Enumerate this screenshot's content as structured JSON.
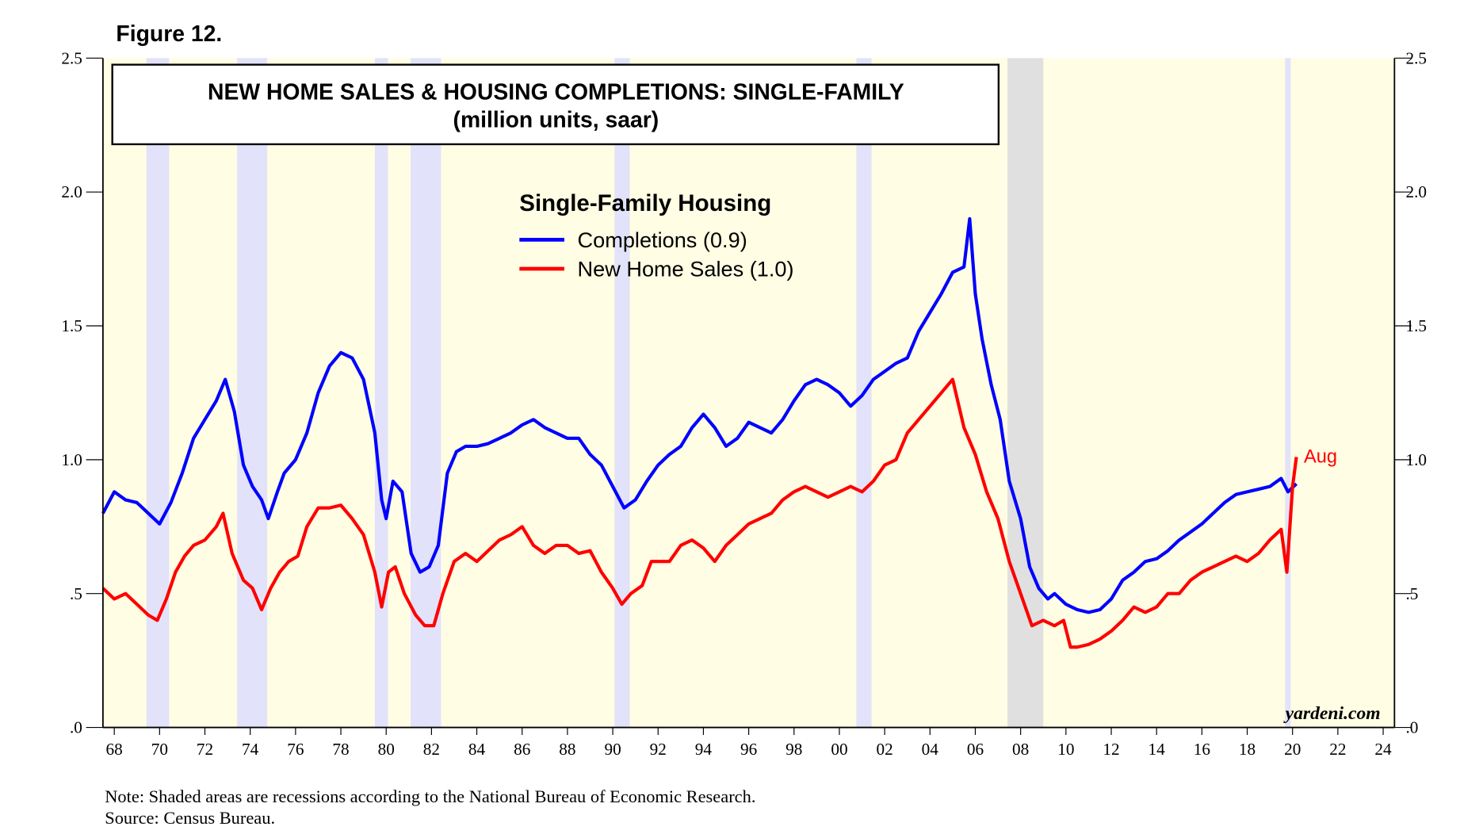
{
  "chart_data": {
    "type": "line",
    "figure_label": "Figure 12.",
    "title": "NEW HOME SALES & HOUSING COMPLETIONS: SINGLE-FAMILY",
    "subtitle": "(million units, saar)",
    "legend_title": "Single-Family Housing",
    "annotation": "Aug",
    "annotation_color": "#ff0000",
    "watermark": "yardeni.com",
    "note": "Note: Shaded areas are recessions according to the National Bureau of Economic Research.",
    "source": "Source: Census Bureau.",
    "background": "#fffde3",
    "recessions": [
      {
        "start": 1969.92,
        "end": 1970.92,
        "color": "#e2e2fa"
      },
      {
        "start": 1973.92,
        "end": 1975.25,
        "color": "#e2e2fa"
      },
      {
        "start": 1980.0,
        "end": 1980.58,
        "color": "#e2e2fa"
      },
      {
        "start": 1981.58,
        "end": 1982.92,
        "color": "#e2e2fa"
      },
      {
        "start": 1990.58,
        "end": 1991.25,
        "color": "#e2e2fa"
      },
      {
        "start": 2001.25,
        "end": 2001.92,
        "color": "#e2e2fa"
      },
      {
        "start": 2007.92,
        "end": 2009.5,
        "color": "#e0e0e0"
      },
      {
        "start": 2020.17,
        "end": 2020.42,
        "color": "#e2e2fa"
      }
    ],
    "xlim": [
      1968,
      2025
    ],
    "xticks": [
      {
        "value": 1968.5,
        "label": "68"
      },
      {
        "value": 1970.5,
        "label": "70"
      },
      {
        "value": 1972.5,
        "label": "72"
      },
      {
        "value": 1974.5,
        "label": "74"
      },
      {
        "value": 1976.5,
        "label": "76"
      },
      {
        "value": 1978.5,
        "label": "78"
      },
      {
        "value": 1980.5,
        "label": "80"
      },
      {
        "value": 1982.5,
        "label": "82"
      },
      {
        "value": 1984.5,
        "label": "84"
      },
      {
        "value": 1986.5,
        "label": "86"
      },
      {
        "value": 1988.5,
        "label": "88"
      },
      {
        "value": 1990.5,
        "label": "90"
      },
      {
        "value": 1992.5,
        "label": "92"
      },
      {
        "value": 1994.5,
        "label": "94"
      },
      {
        "value": 1996.5,
        "label": "96"
      },
      {
        "value": 1998.5,
        "label": "98"
      },
      {
        "value": 2000.5,
        "label": "00"
      },
      {
        "value": 2002.5,
        "label": "02"
      },
      {
        "value": 2004.5,
        "label": "04"
      },
      {
        "value": 2006.5,
        "label": "06"
      },
      {
        "value": 2008.5,
        "label": "08"
      },
      {
        "value": 2010.5,
        "label": "10"
      },
      {
        "value": 2012.5,
        "label": "12"
      },
      {
        "value": 2014.5,
        "label": "14"
      },
      {
        "value": 2016.5,
        "label": "16"
      },
      {
        "value": 2018.5,
        "label": "18"
      },
      {
        "value": 2020.5,
        "label": "20"
      },
      {
        "value": 2022.5,
        "label": "22"
      },
      {
        "value": 2024.5,
        "label": "24"
      }
    ],
    "ylim": [
      0,
      2.5
    ],
    "yticks": [
      {
        "value": 0,
        "label": ".0"
      },
      {
        "value": 0.5,
        "label": ".5"
      },
      {
        "value": 1,
        "label": "1.0"
      },
      1.5,
      {
        "value": 2,
        "label": "2.0"
      },
      2.5
    ],
    "y2lim": [
      0,
      2.5
    ],
    "y2ticks": [
      {
        "value": 0,
        "label": ".0"
      },
      {
        "value": 0.5,
        "label": ".5"
      },
      {
        "value": 1,
        "label": "1.0"
      },
      1.5,
      {
        "value": 2,
        "label": "2.0"
      },
      2.5
    ],
    "series": [
      {
        "name": "Completions (0.9)",
        "color": "#0000ff",
        "x": [
          1968.0,
          1968.5,
          1969.0,
          1969.5,
          1970.0,
          1970.5,
          1971.0,
          1971.5,
          1972.0,
          1972.5,
          1973.0,
          1973.4,
          1973.8,
          1974.2,
          1974.6,
          1975.0,
          1975.3,
          1975.7,
          1976.0,
          1976.5,
          1977.0,
          1977.5,
          1978.0,
          1978.5,
          1979.0,
          1979.5,
          1980.0,
          1980.3,
          1980.5,
          1980.8,
          1981.2,
          1981.6,
          1982.0,
          1982.4,
          1982.8,
          1983.2,
          1983.6,
          1984.0,
          1984.5,
          1985.0,
          1985.5,
          1986.0,
          1986.5,
          1987.0,
          1987.5,
          1988.0,
          1988.5,
          1989.0,
          1989.5,
          1990.0,
          1990.5,
          1991.0,
          1991.5,
          1992.0,
          1992.5,
          1993.0,
          1993.5,
          1994.0,
          1994.5,
          1995.0,
          1995.5,
          1996.0,
          1996.5,
          1997.0,
          1997.5,
          1998.0,
          1998.5,
          1999.0,
          1999.5,
          2000.0,
          2000.5,
          2001.0,
          2001.5,
          2002.0,
          2002.5,
          2003.0,
          2003.5,
          2004.0,
          2004.5,
          2005.0,
          2005.5,
          2006.0,
          2006.25,
          2006.5,
          2006.8,
          2007.2,
          2007.6,
          2008.0,
          2008.5,
          2008.9,
          2009.3,
          2009.7,
          2010.0,
          2010.5,
          2011.0,
          2011.5,
          2012.0,
          2012.5,
          2013.0,
          2013.5,
          2014.0,
          2014.5,
          2015.0,
          2015.5,
          2016.0,
          2016.5,
          2017.0,
          2017.5,
          2018.0,
          2018.5,
          2019.0,
          2019.5,
          2020.0,
          2020.3,
          2020.67
        ],
        "values": [
          0.8,
          0.88,
          0.85,
          0.84,
          0.8,
          0.76,
          0.84,
          0.95,
          1.08,
          1.15,
          1.22,
          1.3,
          1.18,
          0.98,
          0.9,
          0.85,
          0.78,
          0.88,
          0.95,
          1.0,
          1.1,
          1.25,
          1.35,
          1.4,
          1.38,
          1.3,
          1.1,
          0.85,
          0.78,
          0.92,
          0.88,
          0.65,
          0.58,
          0.6,
          0.68,
          0.95,
          1.03,
          1.05,
          1.05,
          1.06,
          1.08,
          1.1,
          1.13,
          1.15,
          1.12,
          1.1,
          1.08,
          1.08,
          1.02,
          0.98,
          0.9,
          0.82,
          0.85,
          0.92,
          0.98,
          1.02,
          1.05,
          1.12,
          1.17,
          1.12,
          1.05,
          1.08,
          1.14,
          1.12,
          1.1,
          1.15,
          1.22,
          1.28,
          1.3,
          1.28,
          1.25,
          1.2,
          1.24,
          1.3,
          1.33,
          1.36,
          1.38,
          1.48,
          1.55,
          1.62,
          1.7,
          1.72,
          1.9,
          1.62,
          1.45,
          1.28,
          1.15,
          0.92,
          0.78,
          0.6,
          0.52,
          0.48,
          0.5,
          0.46,
          0.44,
          0.43,
          0.44,
          0.48,
          0.55,
          0.58,
          0.62,
          0.63,
          0.66,
          0.7,
          0.73,
          0.76,
          0.8,
          0.84,
          0.87,
          0.88,
          0.89,
          0.9,
          0.93,
          0.88,
          0.91
        ]
      },
      {
        "name": "New Home Sales (1.0)",
        "color": "#ff0000",
        "x": [
          1968.0,
          1968.5,
          1969.0,
          1969.5,
          1970.0,
          1970.4,
          1970.8,
          1971.2,
          1971.6,
          1972.0,
          1972.5,
          1973.0,
          1973.3,
          1973.7,
          1974.2,
          1974.6,
          1975.0,
          1975.4,
          1975.8,
          1976.2,
          1976.6,
          1977.0,
          1977.5,
          1978.0,
          1978.5,
          1979.0,
          1979.5,
          1980.0,
          1980.3,
          1980.6,
          1980.9,
          1981.3,
          1981.8,
          1982.2,
          1982.6,
          1983.0,
          1983.5,
          1984.0,
          1984.5,
          1985.0,
          1985.5,
          1986.0,
          1986.5,
          1987.0,
          1987.5,
          1988.0,
          1988.5,
          1989.0,
          1989.5,
          1990.0,
          1990.5,
          1990.9,
          1991.3,
          1991.8,
          1992.2,
          1992.6,
          1993.0,
          1993.5,
          1994.0,
          1994.5,
          1995.0,
          1995.5,
          1996.0,
          1996.5,
          1997.0,
          1997.5,
          1998.0,
          1998.5,
          1999.0,
          1999.5,
          2000.0,
          2000.5,
          2001.0,
          2001.5,
          2002.0,
          2002.5,
          2003.0,
          2003.5,
          2004.0,
          2004.5,
          2005.0,
          2005.5,
          2006.0,
          2006.5,
          2007.0,
          2007.5,
          2008.0,
          2008.5,
          2009.0,
          2009.5,
          2010.0,
          2010.4,
          2010.7,
          2011.0,
          2011.5,
          2012.0,
          2012.5,
          2013.0,
          2013.5,
          2014.0,
          2014.5,
          2015.0,
          2015.5,
          2016.0,
          2016.5,
          2017.0,
          2017.5,
          2018.0,
          2018.5,
          2019.0,
          2019.5,
          2020.0,
          2020.25,
          2020.5,
          2020.67
        ],
        "values": [
          0.52,
          0.48,
          0.5,
          0.46,
          0.42,
          0.4,
          0.48,
          0.58,
          0.64,
          0.68,
          0.7,
          0.75,
          0.8,
          0.65,
          0.55,
          0.52,
          0.44,
          0.52,
          0.58,
          0.62,
          0.64,
          0.75,
          0.82,
          0.82,
          0.83,
          0.78,
          0.72,
          0.58,
          0.45,
          0.58,
          0.6,
          0.5,
          0.42,
          0.38,
          0.38,
          0.5,
          0.62,
          0.65,
          0.62,
          0.66,
          0.7,
          0.72,
          0.75,
          0.68,
          0.65,
          0.68,
          0.68,
          0.65,
          0.66,
          0.58,
          0.52,
          0.46,
          0.5,
          0.53,
          0.62,
          0.62,
          0.62,
          0.68,
          0.7,
          0.67,
          0.62,
          0.68,
          0.72,
          0.76,
          0.78,
          0.8,
          0.85,
          0.88,
          0.9,
          0.88,
          0.86,
          0.88,
          0.9,
          0.88,
          0.92,
          0.98,
          1.0,
          1.1,
          1.15,
          1.2,
          1.25,
          1.3,
          1.12,
          1.02,
          0.88,
          0.78,
          0.62,
          0.5,
          0.38,
          0.4,
          0.38,
          0.4,
          0.3,
          0.3,
          0.31,
          0.33,
          0.36,
          0.4,
          0.45,
          0.43,
          0.45,
          0.5,
          0.5,
          0.55,
          0.58,
          0.6,
          0.62,
          0.64,
          0.62,
          0.65,
          0.7,
          0.74,
          0.58,
          0.9,
          1.01
        ]
      }
    ]
  }
}
